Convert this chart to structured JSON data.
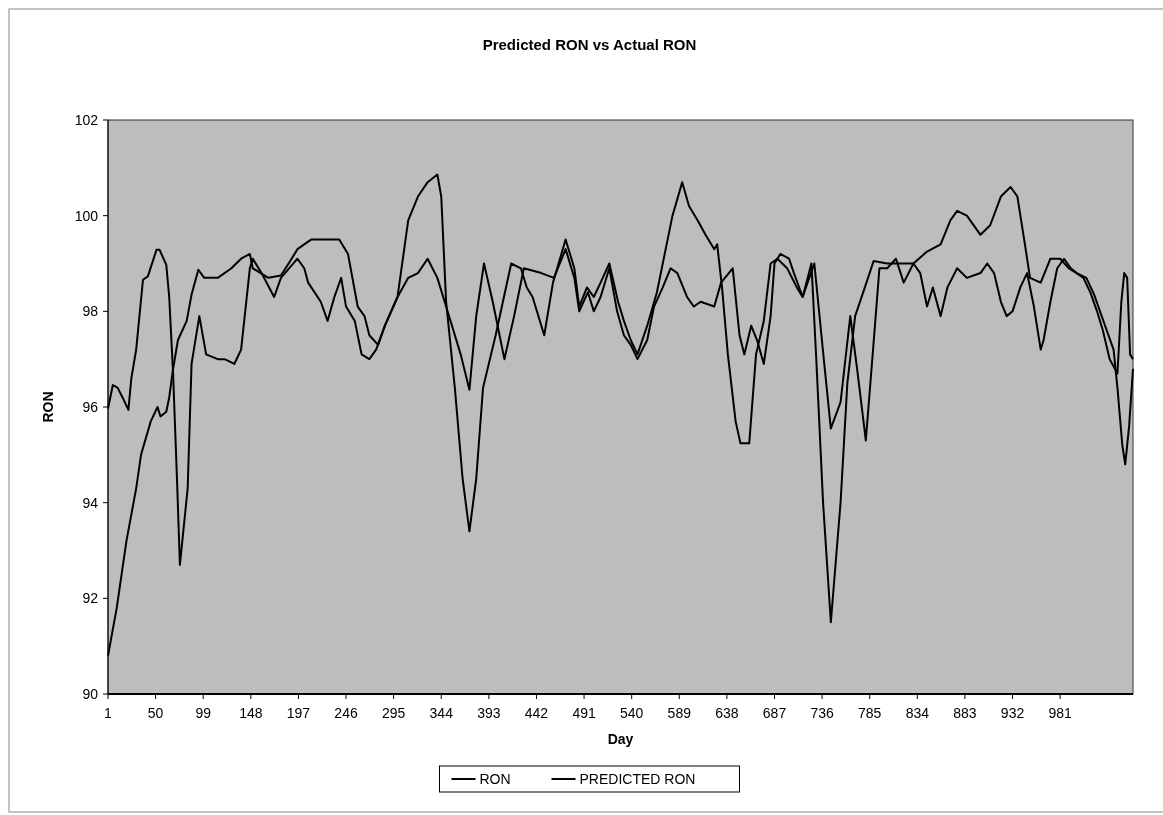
{
  "chart_data": {
    "type": "line",
    "title": "Predicted RON vs Actual RON",
    "xlabel": "Day",
    "ylabel": "RON",
    "xlim": [
      1,
      1056
    ],
    "xticks": [
      1,
      50,
      99,
      148,
      197,
      246,
      295,
      344,
      393,
      442,
      491,
      540,
      589,
      638,
      687,
      736,
      785,
      834,
      883,
      932,
      981
    ],
    "ylim": [
      90,
      102
    ],
    "yticks": [
      90,
      92,
      94,
      96,
      98,
      100,
      102
    ],
    "legend": "bottom",
    "grid": false,
    "marker": "none",
    "line_style": "solid",
    "series": [
      {
        "name": "RON",
        "color": "#000000",
        "x": [
          1,
          10,
          20,
          30,
          35,
          45,
          52,
          55,
          61,
          64,
          68,
          73,
          82,
          87,
          94,
          100,
          114,
          128,
          138,
          147,
          150,
          166,
          179,
          190,
          196,
          210,
          222,
          239,
          248,
          258,
          265,
          270,
          279,
          286,
          299,
          310,
          320,
          330,
          340,
          344,
          349,
          358,
          366,
          373,
          380,
          387,
          400,
          416,
          426,
          432,
          438,
          450,
          459,
          472,
          481,
          486,
          494,
          501,
          508,
          517,
          526,
          532,
          539,
          546,
          556,
          566,
          575,
          582,
          592,
          599,
          608,
          616,
          625,
          628,
          633,
          639,
          647,
          652,
          661,
          668,
          676,
          683,
          690,
          700,
          710,
          716,
          725,
          730,
          737,
          745,
          755,
          762,
          770,
          780,
          789,
          803,
          830,
          844,
          858,
          868,
          875,
          885,
          899,
          909,
          920,
          930,
          937,
          944,
          950,
          961,
          971,
          981,
          990,
          998,
          1008,
          1016,
          1029,
          1036,
          1040,
          1045,
          1048,
          1052,
          1056
        ],
        "values": [
          90.8,
          91.8,
          93.2,
          94.3,
          95.0,
          95.7,
          96.0,
          95.8,
          95.9,
          96.2,
          96.8,
          97.4,
          97.8,
          98.35,
          98.87,
          98.7,
          98.7,
          98.9,
          99.1,
          99.2,
          98.9,
          98.7,
          98.75,
          99.1,
          99.3,
          99.5,
          99.5,
          99.5,
          99.2,
          98.1,
          97.9,
          97.5,
          97.3,
          97.7,
          98.3,
          99.9,
          100.4,
          100.7,
          100.86,
          100.4,
          98.2,
          96.4,
          94.5,
          93.4,
          94.5,
          96.4,
          97.5,
          99.0,
          98.9,
          98.5,
          98.3,
          97.5,
          98.6,
          99.5,
          98.9,
          98.1,
          98.5,
          98.3,
          98.6,
          99.0,
          98.2,
          97.8,
          97.4,
          97.1,
          97.7,
          98.4,
          99.3,
          100.0,
          100.7,
          100.2,
          99.9,
          99.6,
          99.3,
          99.4,
          98.5,
          97.1,
          95.7,
          95.24,
          95.24,
          97.1,
          97.8,
          99.0,
          99.1,
          98.9,
          98.5,
          98.3,
          99.0,
          97.0,
          94.0,
          91.5,
          94.0,
          96.5,
          97.9,
          98.5,
          99.05,
          99.0,
          99.0,
          99.25,
          99.4,
          99.9,
          100.1,
          100.0,
          99.6,
          99.8,
          100.4,
          100.6,
          100.4,
          99.5,
          98.7,
          98.6,
          99.1,
          99.1,
          98.9,
          98.8,
          98.7,
          98.35,
          97.6,
          97.2,
          96.4,
          95.2,
          94.8,
          95.6,
          96.8
        ]
      },
      {
        "name": "PREDICTED RON",
        "color": "#000000",
        "x": [
          1,
          6,
          11,
          16,
          22,
          25,
          30,
          37,
          42,
          51,
          54,
          61,
          64,
          68,
          72,
          75,
          79,
          83,
          87,
          95,
          102,
          114,
          121,
          131,
          138,
          147,
          150,
          159,
          172,
          179,
          196,
          203,
          207,
          220,
          227,
          234,
          241,
          246,
          255,
          262,
          270,
          277,
          286,
          299,
          310,
          320,
          330,
          340,
          349,
          364,
          373,
          380,
          388,
          397,
          409,
          419,
          429,
          447,
          460,
          472,
          481,
          486,
          495,
          501,
          508,
          517,
          525,
          532,
          539,
          546,
          556,
          563,
          572,
          580,
          587,
          597,
          604,
          611,
          625,
          632,
          644,
          651,
          656,
          663,
          669,
          676,
          683,
          687,
          693,
          702,
          707,
          716,
          728,
          738,
          745,
          755,
          765,
          772,
          781,
          790,
          795,
          803,
          812,
          820,
          830,
          837,
          844,
          850,
          858,
          865,
          875,
          885,
          899,
          906,
          913,
          920,
          926,
          932,
          940,
          947,
          954,
          961,
          964,
          971,
          978,
          985,
          992,
          998,
          1005,
          1012,
          1019,
          1025,
          1032,
          1040,
          1044,
          1047,
          1050,
          1053,
          1056
        ],
        "values": [
          95.97,
          96.46,
          96.4,
          96.2,
          95.94,
          96.6,
          97.2,
          98.66,
          98.73,
          99.29,
          99.29,
          98.97,
          98.3,
          96.7,
          94.5,
          92.7,
          93.5,
          94.3,
          96.9,
          97.9,
          97.1,
          97.0,
          97.0,
          96.9,
          97.2,
          98.9,
          99.1,
          98.8,
          98.3,
          98.7,
          99.1,
          98.9,
          98.6,
          98.2,
          97.8,
          98.3,
          98.7,
          98.1,
          97.8,
          97.1,
          97.0,
          97.2,
          97.7,
          98.3,
          98.7,
          98.8,
          99.1,
          98.7,
          98.1,
          97.1,
          96.36,
          97.9,
          99.0,
          98.2,
          97.0,
          97.9,
          98.9,
          98.8,
          98.7,
          99.3,
          98.7,
          98.0,
          98.4,
          98.0,
          98.3,
          98.9,
          98.0,
          97.5,
          97.3,
          97.0,
          97.4,
          98.1,
          98.5,
          98.9,
          98.8,
          98.3,
          98.1,
          98.2,
          98.1,
          98.6,
          98.9,
          97.5,
          97.1,
          97.7,
          97.4,
          96.9,
          97.9,
          99.0,
          99.2,
          99.1,
          98.8,
          98.3,
          99.0,
          96.95,
          95.55,
          96.1,
          97.9,
          96.8,
          95.3,
          97.6,
          98.9,
          98.9,
          99.1,
          98.6,
          99.0,
          98.8,
          98.1,
          98.5,
          97.9,
          98.5,
          98.9,
          98.7,
          98.8,
          99.0,
          98.8,
          98.2,
          97.9,
          98.0,
          98.5,
          98.8,
          98.1,
          97.2,
          97.4,
          98.2,
          98.9,
          99.1,
          98.9,
          98.8,
          98.7,
          98.4,
          98.0,
          97.6,
          97.0,
          96.7,
          98.2,
          98.8,
          98.7,
          97.1,
          97.0
        ]
      }
    ]
  }
}
